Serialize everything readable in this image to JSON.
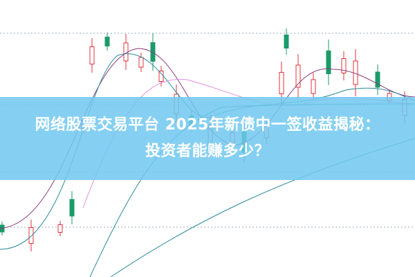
{
  "title": {
    "line1": "网络股票交易平台 2025年新债中一签收益揭秘：",
    "line2": "投资者能赚多少？"
  },
  "colors": {
    "up": "#e0303a",
    "down": "#1a9a6a",
    "banner": "#70c8f0",
    "text": "#ffffff"
  }
}
